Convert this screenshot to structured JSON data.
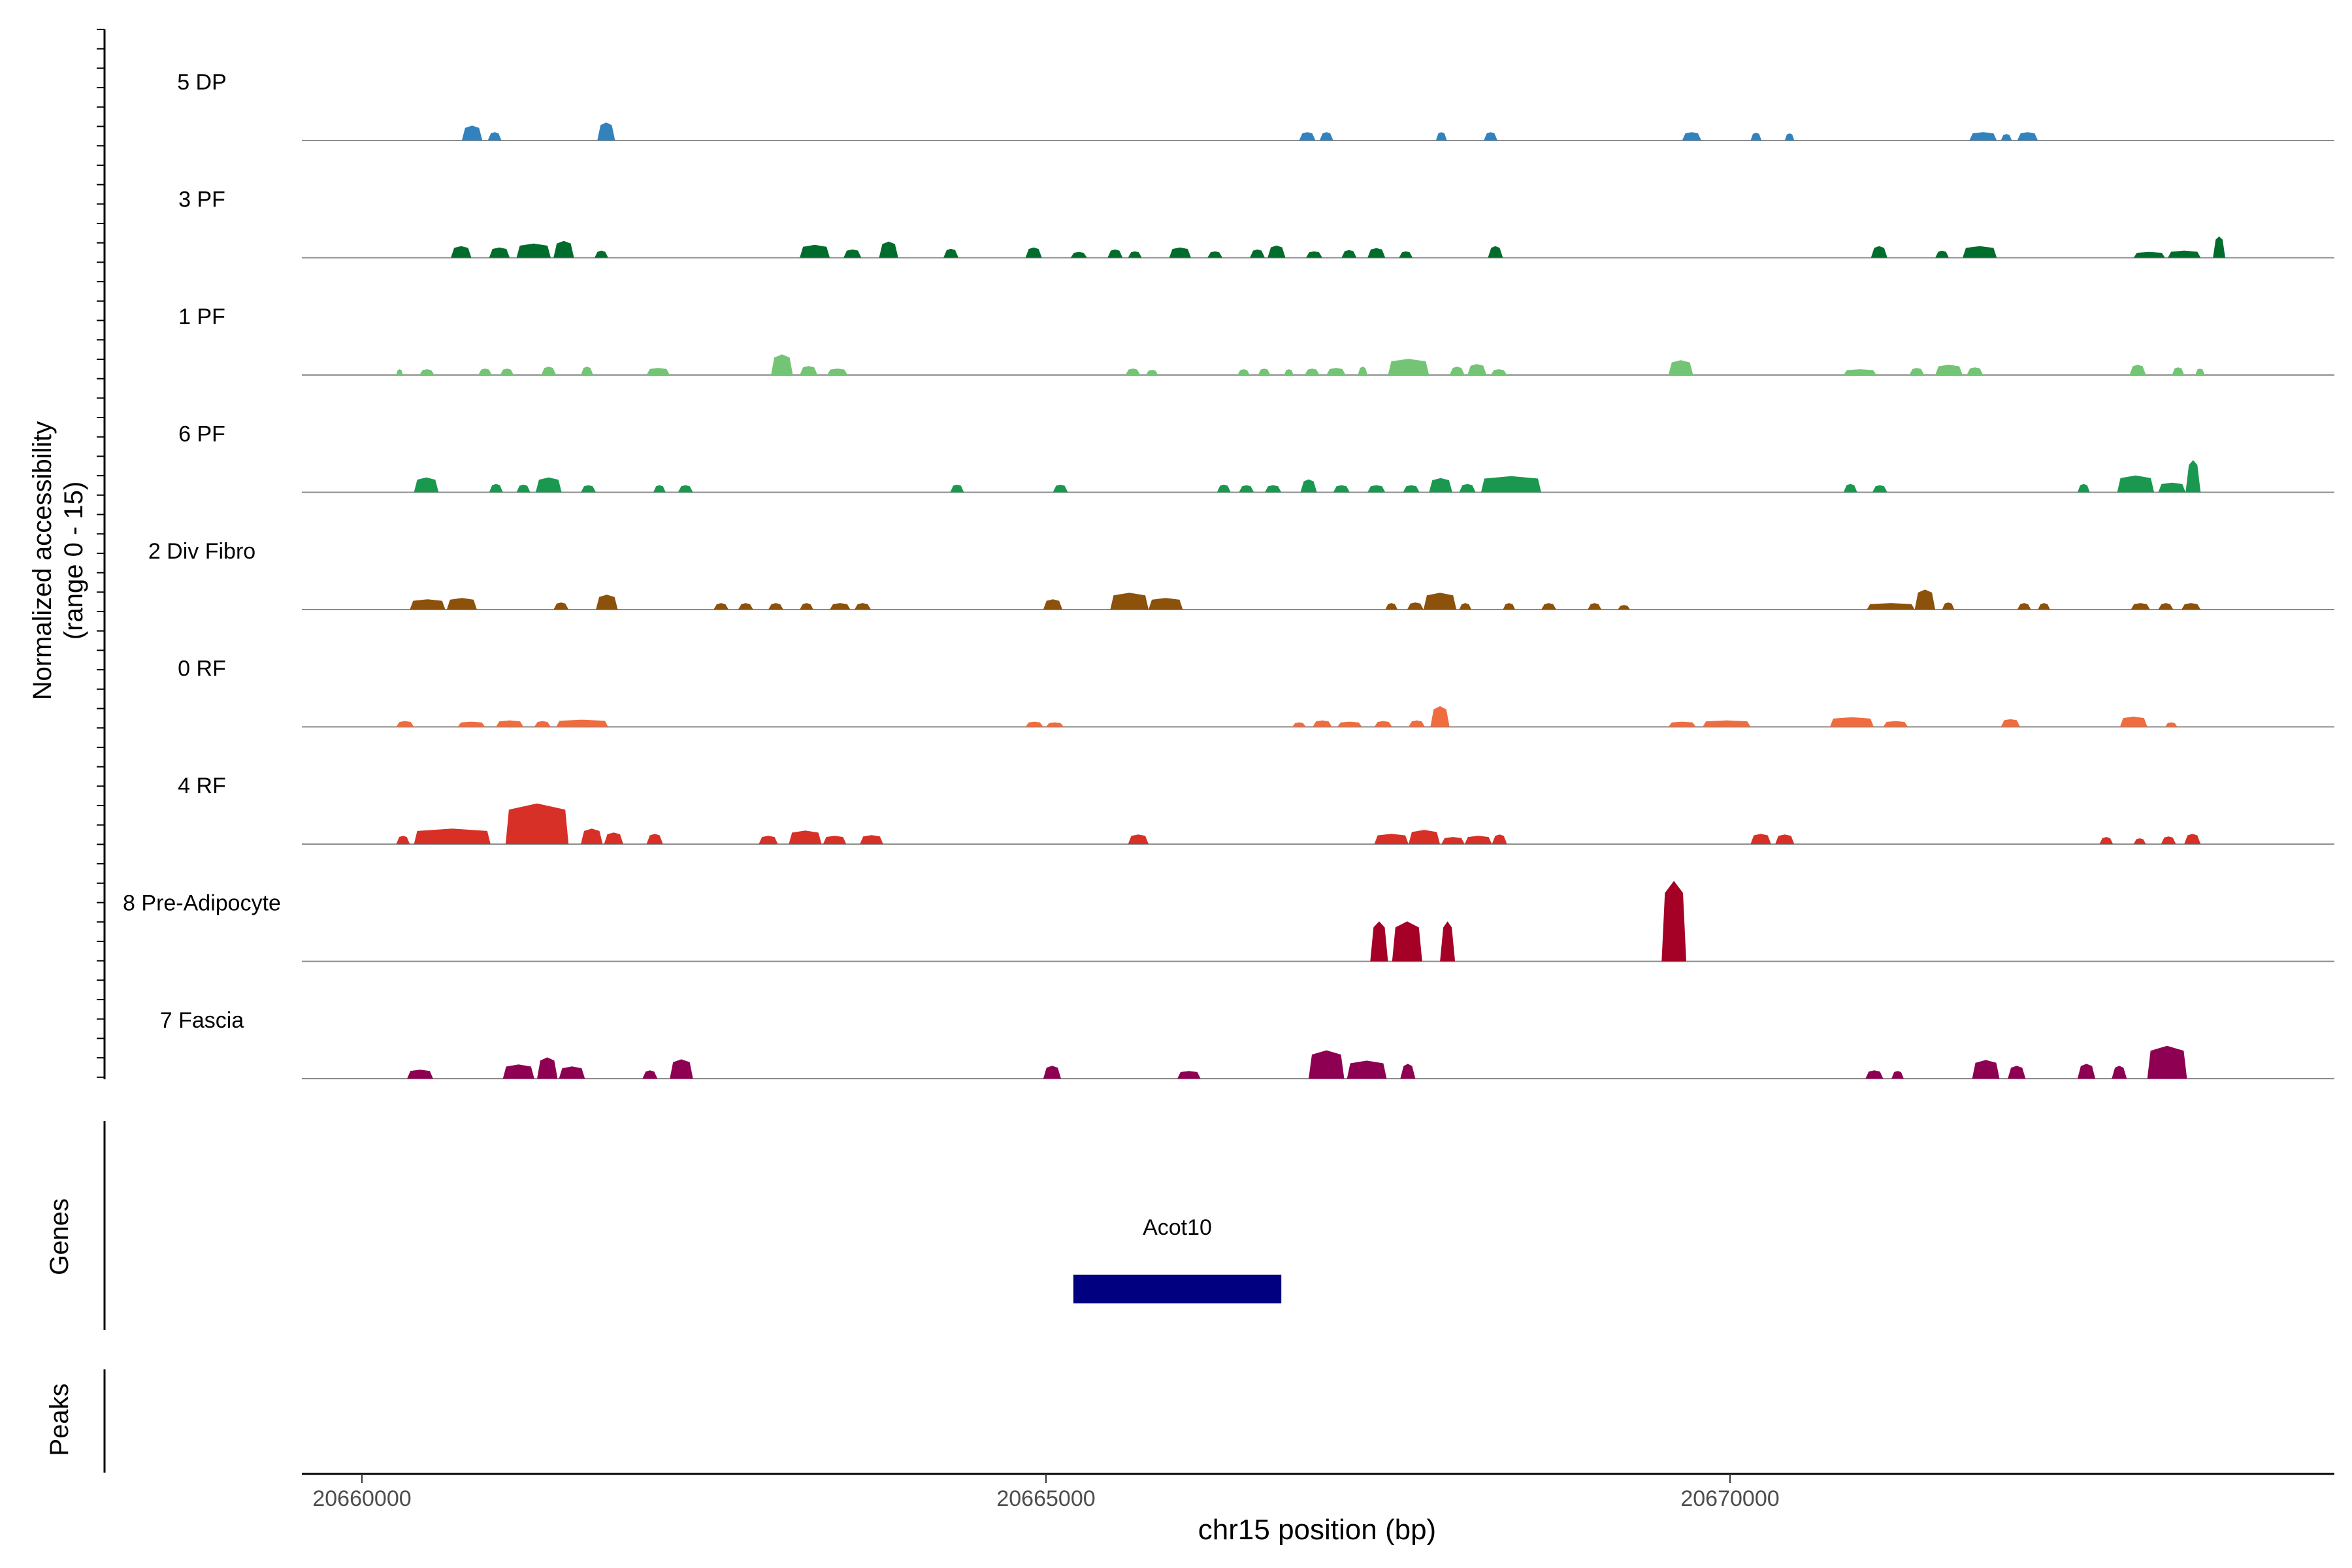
{
  "chart_data": {
    "type": "area",
    "xlabel": "chr15 position (bp)",
    "xlim": [
      20659600,
      20674400
    ],
    "x_ticks": [
      {
        "value": 20660000,
        "label": "20660000"
      },
      {
        "value": 20665000,
        "label": "20665000"
      },
      {
        "value": 20670000,
        "label": "20670000"
      }
    ],
    "ylabel_line1": "Normalized accessibility",
    "ylabel_line2": "(range 0 - 15)",
    "ylim": [
      0,
      15
    ],
    "panels": {
      "genes_label": "Genes",
      "peaks_label": "Peaks"
    },
    "tracks": [
      {
        "label": "5 DP",
        "color": "#3182bd",
        "peaks": [
          [
            20660730,
            20660880,
            2.3
          ],
          [
            20660920,
            20661020,
            1.3
          ],
          [
            20661720,
            20661850,
            2.8
          ],
          [
            20666850,
            20666970,
            1.3
          ],
          [
            20667000,
            20667100,
            1.3
          ],
          [
            20667850,
            20667930,
            1.3
          ],
          [
            20668200,
            20668300,
            1.3
          ],
          [
            20669650,
            20669790,
            1.3
          ],
          [
            20670150,
            20670230,
            1.2
          ],
          [
            20670400,
            20670470,
            1.1
          ],
          [
            20671750,
            20671950,
            1.3
          ],
          [
            20671980,
            20672060,
            1.0
          ],
          [
            20672100,
            20672250,
            1.3
          ]
        ]
      },
      {
        "label": "3 PF",
        "color": "#006d2c",
        "peaks": [
          [
            20660650,
            20660800,
            1.8
          ],
          [
            20660930,
            20661080,
            1.6
          ],
          [
            20661130,
            20661380,
            2.2
          ],
          [
            20661400,
            20661550,
            2.6
          ],
          [
            20661700,
            20661800,
            1.1
          ],
          [
            20663200,
            20663420,
            2.0
          ],
          [
            20663520,
            20663650,
            1.3
          ],
          [
            20663780,
            20663920,
            2.5
          ],
          [
            20664250,
            20664360,
            1.4
          ],
          [
            20664850,
            20664970,
            1.6
          ],
          [
            20665180,
            20665300,
            0.9
          ],
          [
            20665450,
            20665560,
            1.3
          ],
          [
            20665600,
            20665700,
            1.0
          ],
          [
            20665900,
            20666060,
            1.6
          ],
          [
            20666180,
            20666290,
            1.0
          ],
          [
            20666490,
            20666600,
            1.3
          ],
          [
            20666620,
            20666750,
            1.9
          ],
          [
            20666900,
            20667020,
            1.0
          ],
          [
            20667160,
            20667270,
            1.2
          ],
          [
            20667350,
            20667480,
            1.5
          ],
          [
            20667580,
            20667680,
            1.0
          ],
          [
            20668230,
            20668340,
            1.8
          ],
          [
            20671030,
            20671150,
            1.8
          ],
          [
            20671500,
            20671600,
            1.1
          ],
          [
            20671700,
            20671950,
            1.8
          ],
          [
            20672950,
            20673180,
            0.9
          ],
          [
            20673200,
            20673440,
            1.1
          ],
          [
            20673530,
            20673620,
            3.3
          ]
        ]
      },
      {
        "label": "1 PF",
        "color": "#74c476",
        "peaks": [
          [
            20660250,
            20660300,
            0.9
          ],
          [
            20660420,
            20660530,
            0.9
          ],
          [
            20660850,
            20660950,
            1.0
          ],
          [
            20661010,
            20661110,
            1.0
          ],
          [
            20661310,
            20661420,
            1.3
          ],
          [
            20661600,
            20661690,
            1.3
          ],
          [
            20662080,
            20662250,
            1.1
          ],
          [
            20662990,
            20663150,
            3.2
          ],
          [
            20663200,
            20663330,
            1.4
          ],
          [
            20663400,
            20663550,
            1.0
          ],
          [
            20665580,
            20665690,
            1.0
          ],
          [
            20665730,
            20665820,
            0.8
          ],
          [
            20666400,
            20666490,
            0.9
          ],
          [
            20666550,
            20666640,
            1.0
          ],
          [
            20666740,
            20666810,
            0.9
          ],
          [
            20666890,
            20667000,
            1.0
          ],
          [
            20667050,
            20667190,
            1.1
          ],
          [
            20667280,
            20667350,
            1.3
          ],
          [
            20667500,
            20667800,
            2.5
          ],
          [
            20667950,
            20668060,
            1.3
          ],
          [
            20668080,
            20668220,
            1.7
          ],
          [
            20668250,
            20668370,
            0.9
          ],
          [
            20669550,
            20669730,
            2.3
          ],
          [
            20670830,
            20671070,
            0.9
          ],
          [
            20671310,
            20671420,
            1.1
          ],
          [
            20671500,
            20671700,
            1.6
          ],
          [
            20671730,
            20671850,
            1.2
          ],
          [
            20672920,
            20673040,
            1.6
          ],
          [
            20673230,
            20673320,
            1.2
          ],
          [
            20673400,
            20673470,
            1.0
          ]
        ]
      },
      {
        "label": "6 PF",
        "color": "#1a9850",
        "peaks": [
          [
            20660380,
            20660560,
            2.3
          ],
          [
            20660930,
            20661030,
            1.3
          ],
          [
            20661130,
            20661230,
            1.2
          ],
          [
            20661270,
            20661460,
            2.3
          ],
          [
            20661600,
            20661710,
            1.1
          ],
          [
            20662130,
            20662220,
            1.1
          ],
          [
            20662310,
            20662420,
            1.1
          ],
          [
            20664300,
            20664400,
            1.2
          ],
          [
            20665050,
            20665160,
            1.2
          ],
          [
            20666250,
            20666350,
            1.2
          ],
          [
            20666410,
            20666520,
            1.1
          ],
          [
            20666600,
            20666720,
            1.1
          ],
          [
            20666860,
            20666980,
            2.0
          ],
          [
            20667100,
            20667220,
            1.1
          ],
          [
            20667350,
            20667480,
            1.1
          ],
          [
            20667610,
            20667730,
            1.1
          ],
          [
            20667800,
            20667970,
            2.2
          ],
          [
            20668020,
            20668140,
            1.3
          ],
          [
            20668180,
            20668620,
            2.5
          ],
          [
            20670830,
            20670930,
            1.3
          ],
          [
            20671040,
            20671150,
            1.1
          ],
          [
            20672540,
            20672630,
            1.3
          ],
          [
            20672830,
            20673100,
            2.6
          ],
          [
            20673130,
            20673330,
            1.5
          ],
          [
            20673330,
            20673440,
            5.0
          ]
        ]
      },
      {
        "label": "2 Div Fibro",
        "color": "#8c510a",
        "peaks": [
          [
            20660350,
            20660610,
            1.6
          ],
          [
            20660620,
            20660840,
            1.8
          ],
          [
            20661400,
            20661510,
            1.1
          ],
          [
            20661710,
            20661870,
            2.3
          ],
          [
            20662570,
            20662680,
            1.0
          ],
          [
            20662750,
            20662860,
            1.0
          ],
          [
            20662970,
            20663080,
            1.0
          ],
          [
            20663200,
            20663300,
            1.0
          ],
          [
            20663420,
            20663570,
            1.0
          ],
          [
            20663600,
            20663720,
            1.0
          ],
          [
            20664980,
            20665120,
            1.6
          ],
          [
            20665470,
            20665750,
            2.6
          ],
          [
            20665750,
            20666000,
            1.8
          ],
          [
            20667480,
            20667570,
            1.0
          ],
          [
            20667640,
            20667760,
            1.1
          ],
          [
            20667760,
            20668000,
            2.6
          ],
          [
            20668020,
            20668110,
            1.0
          ],
          [
            20668340,
            20668430,
            1.0
          ],
          [
            20668620,
            20668730,
            1.0
          ],
          [
            20668960,
            20669060,
            1.0
          ],
          [
            20669180,
            20669270,
            0.7
          ],
          [
            20671000,
            20671350,
            1.0
          ],
          [
            20671350,
            20671500,
            3.1
          ],
          [
            20671550,
            20671640,
            1.1
          ],
          [
            20672100,
            20672200,
            1.0
          ],
          [
            20672250,
            20672340,
            1.0
          ],
          [
            20672930,
            20673070,
            1.0
          ],
          [
            20673130,
            20673240,
            1.0
          ],
          [
            20673300,
            20673440,
            1.0
          ]
        ]
      },
      {
        "label": "0 RF",
        "color": "#ef6c3f",
        "peaks": [
          [
            20660250,
            20660380,
            0.9
          ],
          [
            20660700,
            20660900,
            0.8
          ],
          [
            20660980,
            20661180,
            1.0
          ],
          [
            20661260,
            20661380,
            0.9
          ],
          [
            20661420,
            20661800,
            1.1
          ],
          [
            20664850,
            20664980,
            0.8
          ],
          [
            20665000,
            20665130,
            0.7
          ],
          [
            20666800,
            20666900,
            0.7
          ],
          [
            20666950,
            20667090,
            1.0
          ],
          [
            20667130,
            20667310,
            0.8
          ],
          [
            20667400,
            20667530,
            0.9
          ],
          [
            20667650,
            20667770,
            1.0
          ],
          [
            20667810,
            20667950,
            3.2
          ],
          [
            20669550,
            20669750,
            0.8
          ],
          [
            20669800,
            20670150,
            1.0
          ],
          [
            20670730,
            20671050,
            1.5
          ],
          [
            20671120,
            20671300,
            0.9
          ],
          [
            20671980,
            20672120,
            1.2
          ],
          [
            20672850,
            20673050,
            1.6
          ],
          [
            20673180,
            20673270,
            0.7
          ]
        ]
      },
      {
        "label": "4 RF",
        "color": "#d73027",
        "peaks": [
          [
            20660250,
            20660350,
            1.3
          ],
          [
            20660380,
            20660940,
            2.4
          ],
          [
            20661050,
            20661510,
            6.3
          ],
          [
            20661600,
            20661760,
            2.4
          ],
          [
            20661770,
            20661910,
            1.8
          ],
          [
            20662080,
            20662200,
            1.6
          ],
          [
            20662900,
            20663040,
            1.3
          ],
          [
            20663120,
            20663360,
            2.1
          ],
          [
            20663370,
            20663540,
            1.3
          ],
          [
            20663640,
            20663810,
            1.4
          ],
          [
            20665600,
            20665750,
            1.5
          ],
          [
            20667400,
            20667650,
            1.6
          ],
          [
            20667650,
            20667880,
            2.2
          ],
          [
            20667890,
            20668060,
            1.1
          ],
          [
            20668060,
            20668260,
            1.3
          ],
          [
            20668260,
            20668370,
            1.5
          ],
          [
            20670150,
            20670300,
            1.6
          ],
          [
            20670330,
            20670470,
            1.5
          ],
          [
            20672700,
            20672800,
            1.1
          ],
          [
            20672950,
            20673040,
            0.9
          ],
          [
            20673150,
            20673260,
            1.2
          ],
          [
            20673320,
            20673440,
            1.6
          ]
        ]
      },
      {
        "label": "8 Pre-Adipocyte",
        "color": "#a50026",
        "peaks": [
          [
            20667370,
            20667500,
            6.2
          ],
          [
            20667530,
            20667750,
            6.2
          ],
          [
            20667880,
            20667990,
            6.2
          ],
          [
            20669500,
            20669680,
            12.5
          ]
        ]
      },
      {
        "label": "7 Fascia",
        "color": "#8e0152",
        "peaks": [
          [
            20660330,
            20660520,
            1.4
          ],
          [
            20661030,
            20661260,
            2.2
          ],
          [
            20661280,
            20661430,
            3.3
          ],
          [
            20661440,
            20661630,
            1.9
          ],
          [
            20662050,
            20662160,
            1.3
          ],
          [
            20662250,
            20662420,
            3.0
          ],
          [
            20664980,
            20665110,
            2.0
          ],
          [
            20665960,
            20666130,
            1.2
          ],
          [
            20666920,
            20667180,
            4.4
          ],
          [
            20667200,
            20667490,
            2.8
          ],
          [
            20667590,
            20667700,
            2.3
          ],
          [
            20670990,
            20671120,
            1.3
          ],
          [
            20671180,
            20671270,
            1.2
          ],
          [
            20671770,
            20671970,
            2.9
          ],
          [
            20672030,
            20672160,
            2.0
          ],
          [
            20672540,
            20672670,
            2.3
          ],
          [
            20672790,
            20672900,
            2.0
          ],
          [
            20673050,
            20673340,
            5.1
          ]
        ]
      }
    ],
    "genes": [
      {
        "name": "Acot10",
        "start": 20665200,
        "end": 20666720,
        "color": "#000080"
      }
    ]
  }
}
